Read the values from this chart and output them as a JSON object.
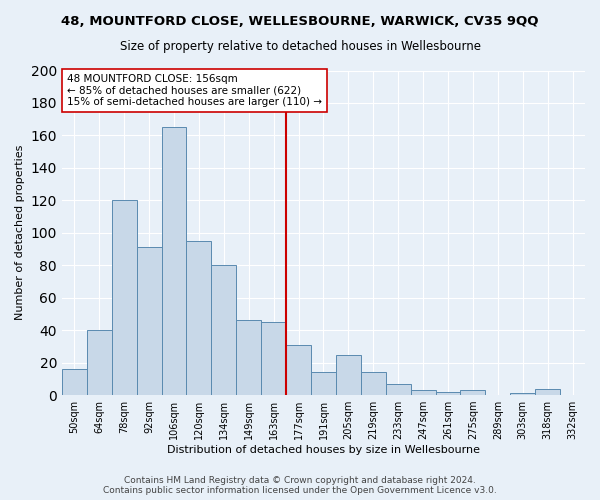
{
  "title1": "48, MOUNTFORD CLOSE, WELLESBOURNE, WARWICK, CV35 9QQ",
  "title2": "Size of property relative to detached houses in Wellesbourne",
  "xlabel": "Distribution of detached houses by size in Wellesbourne",
  "ylabel": "Number of detached properties",
  "footer": "Contains HM Land Registry data © Crown copyright and database right 2024.\nContains public sector information licensed under the Open Government Licence v3.0.",
  "bin_labels": [
    "50sqm",
    "64sqm",
    "78sqm",
    "92sqm",
    "106sqm",
    "120sqm",
    "134sqm",
    "149sqm",
    "163sqm",
    "177sqm",
    "191sqm",
    "205sqm",
    "219sqm",
    "233sqm",
    "247sqm",
    "261sqm",
    "275sqm",
    "289sqm",
    "303sqm",
    "318sqm",
    "332sqm"
  ],
  "bar_heights": [
    16,
    40,
    120,
    91,
    165,
    95,
    80,
    46,
    45,
    31,
    14,
    25,
    14,
    7,
    3,
    2,
    3,
    0,
    1,
    4,
    0
  ],
  "bar_color": "#c8d8e8",
  "bar_edge_color": "#5a8ab0",
  "vline_x_index": 8.5,
  "vline_color": "#cc0000",
  "annotation_text": "48 MOUNTFORD CLOSE: 156sqm\n← 85% of detached houses are smaller (622)\n15% of semi-detached houses are larger (110) →",
  "annotation_box_color": "#ffffff",
  "annotation_box_edge_color": "#cc0000",
  "ylim": [
    0,
    200
  ],
  "yticks": [
    0,
    20,
    40,
    60,
    80,
    100,
    120,
    140,
    160,
    180,
    200
  ],
  "bg_color": "#e8f0f8",
  "plot_bg_color": "#e8f0f8",
  "grid_color": "#ffffff",
  "title1_fontsize": 9.5,
  "title2_fontsize": 8.5,
  "xlabel_fontsize": 8,
  "ylabel_fontsize": 8,
  "footer_fontsize": 6.5,
  "annot_fontsize": 7.5
}
